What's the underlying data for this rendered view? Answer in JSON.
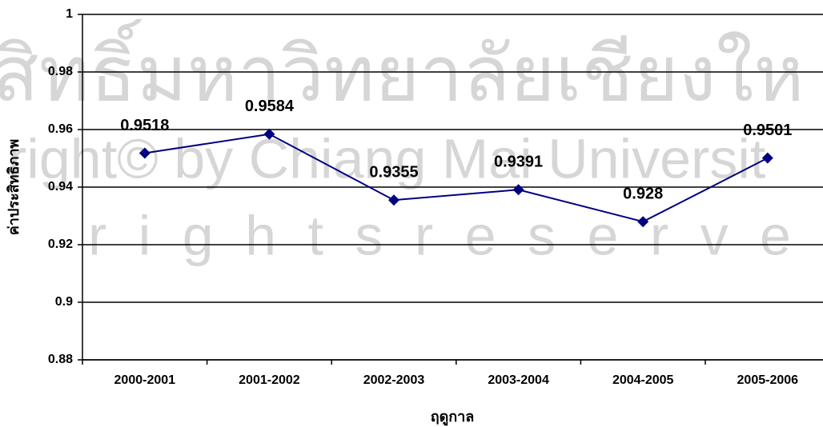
{
  "chart_data": {
    "type": "line",
    "x_label": "ฤดูกาล",
    "y_label": "ค่าประสิทธิภาพ",
    "categories": [
      "2000-2001",
      "2001-2002",
      "2002-2003",
      "2003-2004",
      "2004-2005",
      "2005-2006"
    ],
    "values": [
      0.9518,
      0.9584,
      0.9355,
      0.9391,
      0.928,
      0.9501
    ],
    "color": "#000080",
    "ylim": [
      0.88,
      1
    ],
    "yticks": [
      0.88,
      0.9,
      0.92,
      0.94,
      0.96,
      0.98,
      1
    ],
    "grid": true,
    "watermark": [
      "สิทธิ์มหาวิทยาลัยเชียงให",
      "right© by Chiang Mai Universit",
      "r i g h t s   r e s e r v e"
    ]
  }
}
